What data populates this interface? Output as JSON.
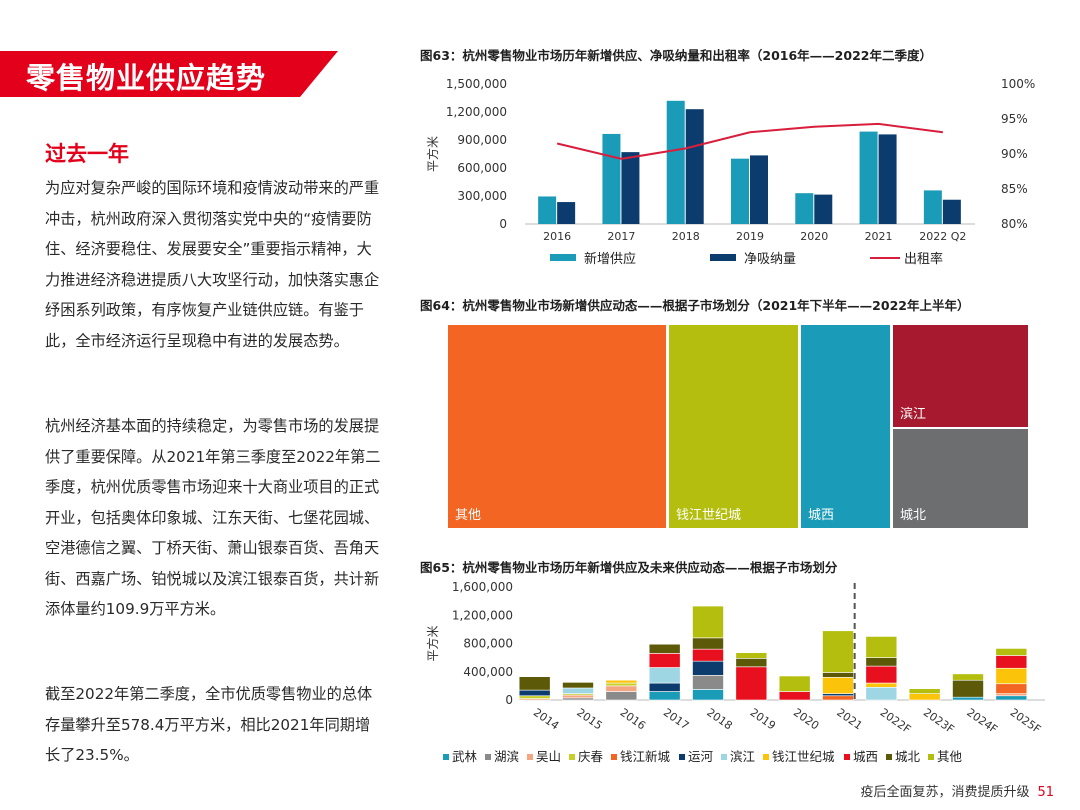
{
  "section": {
    "banner_title": "零售物业供应趋势",
    "subtitle": "过去一年",
    "paragraphs": [
      "为应对复杂严峻的国际环境和疫情波动带来的严重冲击，杭州政府深入贯彻落实党中央的“疫情要防住、经济要稳住、发展要安全”重要指示精神，大力推进经济稳进提质八大攻坚行动，加快落实惠企纾困系列政策，有序恢复产业链供应链。有鉴于此，全市经济运行呈现稳中有进的发展态势。",
      "杭州经济基本面的持续稳定，为零售市场的发展提供了重要保障。从2021年第三季度至2022年第二季度，杭州优质零售市场迎来十大商业项目的正式开业，包括奥体印象城、江东天街、七堡花园城、空港德信之翼、丁桥天街、萧山银泰百货、吾角天街、西嘉广场、铂悦城以及滨江银泰百货，共计新添体量约109.9万平方米。",
      "截至2022年第二季度，全市优质零售物业的总体存量攀升至578.4万平方米，相比2021年同期增长了23.5%。"
    ]
  },
  "figures": {
    "fig63_title": "图63：杭州零售物业市场历年新增供应、净吸纳量和出租率（2016年——2022年二季度）",
    "fig64_title": "图64：杭州零售物业市场新增供应动态——根据子市场划分（2021年下半年——2022年上半年）",
    "fig65_title": "图65：杭州零售物业市场历年新增供应及未来供应动态——根据子市场划分"
  },
  "chart_data": [
    {
      "type": "bar",
      "id": "fig63",
      "categories": [
        "2016",
        "2017",
        "2018",
        "2019",
        "2020",
        "2021",
        "2022 Q2"
      ],
      "ylabel": "平方米",
      "ylim": [
        0,
        1500000
      ],
      "yticks": [
        "0",
        "300,000",
        "600,000",
        "900,000",
        "1,200,000",
        "1,500,000"
      ],
      "y2lim": [
        80,
        100
      ],
      "y2ticks": [
        "80%",
        "85%",
        "90%",
        "95%",
        "100%"
      ],
      "series": [
        {
          "name": "新增供应",
          "type": "bar",
          "color": "#1a9bb8",
          "values": [
            295000,
            965000,
            1320000,
            700000,
            330000,
            990000,
            360000
          ]
        },
        {
          "name": "净吸纳量",
          "type": "bar",
          "color": "#0c3c6e",
          "values": [
            235000,
            770000,
            1230000,
            735000,
            315000,
            960000,
            260000
          ]
        },
        {
          "name": "出租率",
          "type": "line",
          "color": "#d81e3c",
          "axis": "y2",
          "values": [
            91.5,
            89.3,
            90.8,
            93.1,
            93.9,
            94.3,
            93.1
          ]
        }
      ],
      "grid": false,
      "legend": "bottom"
    },
    {
      "type": "heatmap",
      "id": "fig64",
      "subtype": "treemap",
      "cells": [
        {
          "label": "其他",
          "color": "#f26522"
        },
        {
          "label": "钱江世纪城",
          "color": "#b4be0e"
        },
        {
          "label": "城西",
          "color": "#1a9bb8"
        },
        {
          "label": "滨江",
          "color": "#a6192e"
        },
        {
          "label": "城北",
          "color": "#6d6e70"
        }
      ]
    },
    {
      "type": "bar",
      "id": "fig65",
      "stacked": true,
      "categories": [
        "2014",
        "2015",
        "2016",
        "2017",
        "2018",
        "2019",
        "2020",
        "2021",
        "2022F",
        "2023F",
        "2024F",
        "2025F"
      ],
      "ylabel": "平方米",
      "ylim": [
        0,
        1600000
      ],
      "yticks": [
        "0",
        "400,000",
        "800,000",
        "1,200,000",
        "1,600,000"
      ],
      "forecast_divider_after": "2021",
      "series": [
        {
          "name": "武林",
          "color": "#1a9bb8",
          "values": [
            0,
            0,
            0,
            120000,
            150000,
            0,
            0,
            0,
            0,
            0,
            40000,
            60000
          ]
        },
        {
          "name": "湖滨",
          "color": "#8a8a8a",
          "values": [
            0,
            30000,
            120000,
            0,
            200000,
            0,
            0,
            0,
            0,
            0,
            0,
            0
          ]
        },
        {
          "name": "吴山",
          "color": "#f4a582",
          "values": [
            20000,
            40000,
            80000,
            0,
            0,
            0,
            0,
            0,
            0,
            0,
            0,
            30000
          ]
        },
        {
          "name": "庆春",
          "color": "#c7cf2a",
          "values": [
            40000,
            20000,
            40000,
            0,
            0,
            0,
            0,
            0,
            0,
            0,
            0,
            0
          ]
        },
        {
          "name": "钱江新城",
          "color": "#f26522",
          "values": [
            0,
            0,
            0,
            0,
            0,
            0,
            0,
            60000,
            0,
            0,
            0,
            140000
          ]
        },
        {
          "name": "运河",
          "color": "#0c3c6e",
          "values": [
            80000,
            0,
            0,
            120000,
            200000,
            0,
            0,
            30000,
            0,
            0,
            0,
            0
          ]
        },
        {
          "name": "滨江",
          "color": "#9ed6e3",
          "values": [
            0,
            80000,
            0,
            220000,
            0,
            0,
            0,
            0,
            180000,
            0,
            0,
            0
          ]
        },
        {
          "name": "钱江世纪城",
          "color": "#fbc30a",
          "values": [
            0,
            0,
            40000,
            0,
            0,
            0,
            0,
            230000,
            60000,
            90000,
            0,
            220000
          ]
        },
        {
          "name": "城西",
          "color": "#e8101e",
          "values": [
            0,
            0,
            0,
            200000,
            170000,
            470000,
            120000,
            0,
            240000,
            0,
            0,
            180000
          ]
        },
        {
          "name": "城北",
          "color": "#5c5a08",
          "values": [
            190000,
            80000,
            0,
            130000,
            160000,
            120000,
            0,
            70000,
            120000,
            0,
            240000,
            0
          ]
        },
        {
          "name": "其他",
          "color": "#b4be0e",
          "values": [
            0,
            0,
            0,
            0,
            450000,
            80000,
            220000,
            590000,
            300000,
            70000,
            90000,
            100000
          ]
        }
      ],
      "legend": "bottom"
    }
  ],
  "footer": {
    "text": "疫后全面复苏，消费提质升级",
    "page": "51"
  }
}
